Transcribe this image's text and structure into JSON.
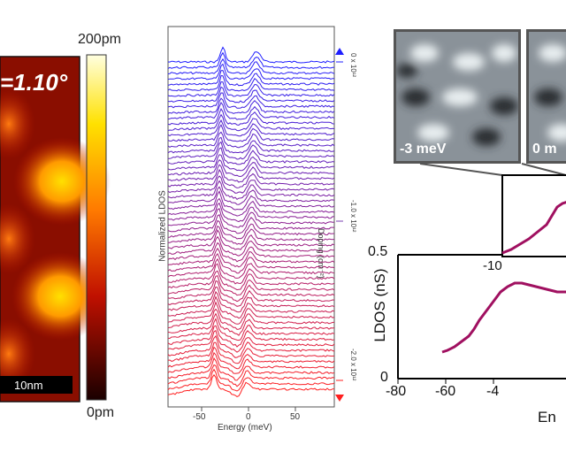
{
  "panel_a": {
    "twist_label": "=1.10°",
    "scalebar_label": "10nm",
    "colorbar_max": "200pm",
    "colorbar_min": "0pm"
  },
  "panel_b": {
    "ylabel": "Normalized LDOS",
    "xlabel": "Energy (meV)",
    "xticks": [
      "-50",
      "0",
      "50"
    ],
    "doping_label": "Doping (cm⁻²)",
    "doping_ticks": [
      "0 x 10¹²",
      "-1.0 x 10¹²",
      "-2.0 x 10¹²"
    ],
    "colors": {
      "top": "#1f1fff",
      "bottom": "#ff1f1f"
    }
  },
  "panel_c": {
    "image_labels": [
      "-3 meV",
      "0 m"
    ],
    "inset_xtick": "-10",
    "ylabel": "LDOS (nS)",
    "yticks": [
      "0.5",
      "0"
    ],
    "xticks": [
      "-80",
      "-60",
      "-4"
    ],
    "xlabel_partial": "En",
    "line_color": "#a01060"
  }
}
